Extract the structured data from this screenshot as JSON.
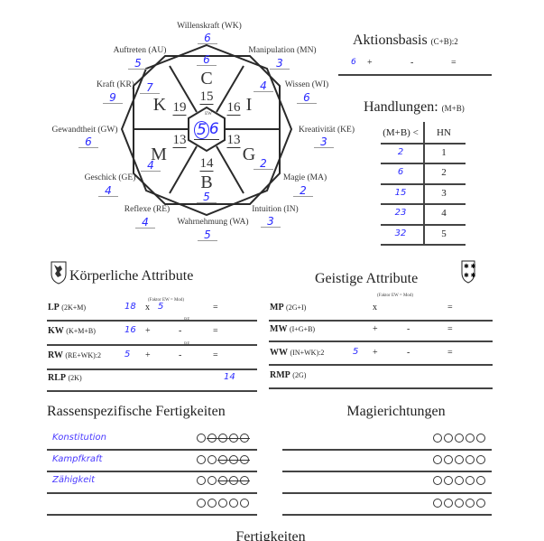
{
  "diagram": {
    "outer": [
      {
        "label": "Willenskraft (WK)",
        "value": "6"
      },
      {
        "label": "Auftreten (AU)",
        "value": "5"
      },
      {
        "label": "Manipulation (MN)",
        "value": "3"
      },
      {
        "label": "Kraft (KR)",
        "value": "9"
      },
      {
        "label": "Wissen (WI)",
        "value": "6"
      },
      {
        "label": "Gewandtheit (GW)",
        "value": "6"
      },
      {
        "label": "Kreativität (KE)",
        "value": "3"
      },
      {
        "label": "Geschick (GE)",
        "value": "4"
      },
      {
        "label": "Magie (MA)",
        "value": "2"
      },
      {
        "label": "Reflexe (RE)",
        "value": "4"
      },
      {
        "label": "Intuition (IN)",
        "value": "3"
      },
      {
        "label": "Wahrnehmung (WA)",
        "value": "5"
      }
    ],
    "inner": {
      "C": {
        "letter": "C",
        "sum": "15",
        "mod": "6"
      },
      "K": {
        "letter": "K",
        "sum": "19",
        "mod": "7"
      },
      "I": {
        "letter": "I",
        "sum": "16",
        "mod": "4"
      },
      "M": {
        "letter": "M",
        "sum": "13",
        "mod": "4"
      },
      "G": {
        "letter": "G",
        "sum": "13",
        "mod": "2"
      },
      "B": {
        "letter": "B",
        "sum": "14",
        "mod": "5"
      }
    },
    "center": {
      "label": "EW",
      "value_a": "5",
      "value_b": "6"
    }
  },
  "aktionsbasis": {
    "title": "Aktionsbasis",
    "formula": "(C+B):2",
    "value": "6",
    "plus": "+",
    "minus": "-",
    "equals": "="
  },
  "handlungen": {
    "title": "Handlungen:",
    "formula": "(M+B)",
    "headers": [
      "(M+B) <",
      "HN"
    ],
    "rows": [
      [
        "2",
        "1"
      ],
      [
        "6",
        "2"
      ],
      [
        "15",
        "3"
      ],
      [
        "23",
        "4"
      ],
      [
        "32",
        "5"
      ]
    ]
  },
  "koerperlich": {
    "title": "Körperliche Attribute",
    "faktor_note": "(Faktor EW = Mod)",
    "rows": [
      {
        "name": "LP",
        "formula": "(2K+M)",
        "value": "18",
        "op": "x",
        "value2": "5",
        "eq": "="
      },
      {
        "name": "KW",
        "formula": "(K+M+B)",
        "value": "16",
        "op": "+",
        "be": "BE",
        "minus": "-",
        "eq": "="
      },
      {
        "name": "RW",
        "formula": "(RE+WK):2",
        "value": "5",
        "op": "+",
        "be": "BE",
        "minus": "-",
        "eq": "="
      },
      {
        "name": "RLP",
        "formula": "(2K)",
        "result": "14"
      }
    ]
  },
  "geistig": {
    "title": "Geistige Attribute",
    "faktor_note": "(Faktor EW = Mod)",
    "rows": [
      {
        "name": "MP",
        "formula": "(2G+I)",
        "op": "x",
        "eq": "="
      },
      {
        "name": "MW",
        "formula": "(I+G+B)",
        "op": "+",
        "minus": "-",
        "eq": "="
      },
      {
        "name": "WW",
        "formula": "(IN+WK):2",
        "value": "5",
        "op": "+",
        "minus": "-",
        "eq": "="
      },
      {
        "name": "RMP",
        "formula": "(2G)"
      }
    ]
  },
  "rassen": {
    "title": "Rassenspezifische Fertigkeiten",
    "rows": [
      {
        "name": "Konstitution",
        "crossed": 4
      },
      {
        "name": "Kampfkraft",
        "crossed": 3
      },
      {
        "name": "Zähigkeit",
        "crossed": 3
      },
      {
        "name": "",
        "crossed": 0
      }
    ]
  },
  "magie": {
    "title": "Magierichtungen",
    "rows": [
      {
        "crossed": 0
      },
      {
        "crossed": 0
      },
      {
        "crossed": 0
      },
      {
        "crossed": 0
      }
    ]
  },
  "fertigkeiten": {
    "title": "Fertigkeiten"
  },
  "colors": {
    "handwriting": "#2a2aff",
    "ink": "#222222"
  }
}
